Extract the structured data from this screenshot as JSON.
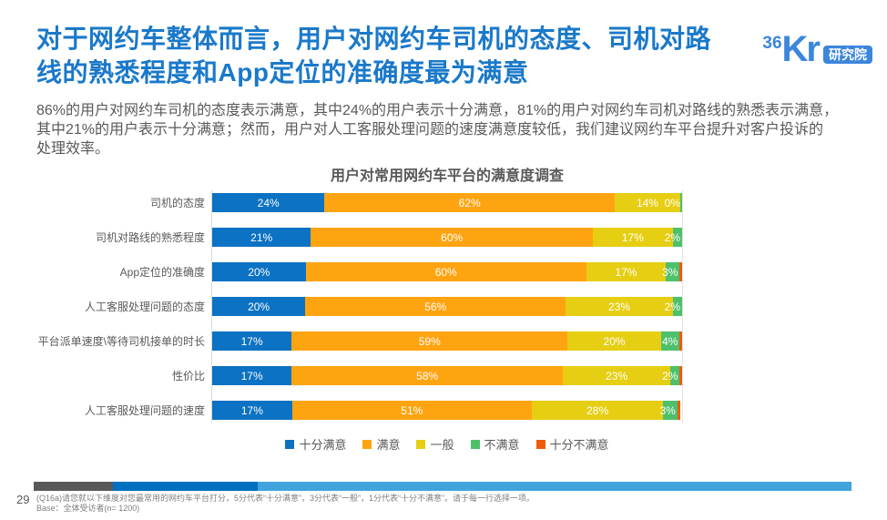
{
  "header": {
    "title_line1": "对于网约车整体而言，用户对网约车司机的态度、司机对路",
    "title_line2": "线的熟悉程度和App定位的准确度最为满意",
    "logo": {
      "num": "36",
      "kr": "Kr",
      "suffix": "研究院"
    }
  },
  "body_lines": {
    "l1": "86%的用户对网约车司机的态度表示满意，其中24%的用户表示十分满意，81%的用户对网约车司机对路线的熟悉表示满意，",
    "l2": "其中21%的用户表示十分满意；然而，用户对人工客服处理问题的速度满意度较低，我们建议网约车平台提升对客户投诉的",
    "l3": "处理效率。"
  },
  "chart_data": {
    "type": "bar",
    "variant": "horizontal-stacked",
    "title": "用户对常用网约车平台的满意度调查",
    "xlim": [
      0,
      100
    ],
    "legend": [
      {
        "name": "十分满意",
        "color": "#0C72C3"
      },
      {
        "name": "满意",
        "color": "#FFA411"
      },
      {
        "name": "一般",
        "color": "#E6CE13"
      },
      {
        "name": "不满意",
        "color": "#4EC06B"
      },
      {
        "name": "十分不满意",
        "color": "#ED5C0C"
      }
    ],
    "categories": [
      "司机的态度",
      "司机对路线的熟悉程度",
      "App定位的准确度",
      "人工客服处理问题的态度",
      "平台派单速度\\等待司机接单的时长",
      "性价比",
      "人工客服处理问题的速度"
    ],
    "rows": [
      {
        "category": "司机的态度",
        "values": [
          24,
          62,
          14,
          0,
          0
        ],
        "labels": [
          "24%",
          "62%",
          "14%",
          "0%",
          ""
        ],
        "display_widths": [
          24,
          62,
          14,
          0.4,
          0
        ]
      },
      {
        "category": "司机对路线的熟悉程度",
        "values": [
          21,
          60,
          17,
          2,
          0
        ],
        "labels": [
          "21%",
          "60%",
          "17%",
          "2%",
          ""
        ],
        "display_widths": [
          21,
          60,
          17,
          2,
          0
        ]
      },
      {
        "category": "App定位的准确度",
        "values": [
          20,
          60,
          17,
          3,
          0
        ],
        "labels": [
          "20%",
          "60%",
          "17%",
          "3%",
          ""
        ],
        "display_widths": [
          20,
          60,
          17,
          3,
          0.5
        ]
      },
      {
        "category": "人工客服处理问题的态度",
        "values": [
          20,
          56,
          23,
          2,
          0
        ],
        "labels": [
          "20%",
          "56%",
          "23%",
          "2%",
          ""
        ],
        "display_widths": [
          20,
          56,
          23,
          2,
          0
        ]
      },
      {
        "category": "平台派单速度\\等待司机接单的时长",
        "values": [
          17,
          59,
          20,
          4,
          0
        ],
        "labels": [
          "17%",
          "59%",
          "20%",
          "4%",
          ""
        ],
        "display_widths": [
          17,
          59,
          20,
          4,
          0.5
        ]
      },
      {
        "category": "性价比",
        "values": [
          17,
          58,
          23,
          2,
          0
        ],
        "labels": [
          "17%",
          "58%",
          "23%",
          "2%",
          ""
        ],
        "display_widths": [
          17,
          58,
          23,
          2,
          0.5
        ]
      },
      {
        "category": "人工客服处理问题的速度",
        "values": [
          17,
          51,
          28,
          3,
          1
        ],
        "labels": [
          "17%",
          "51%",
          "28%",
          "3%",
          ""
        ],
        "display_widths": [
          17,
          51,
          28,
          3,
          0.7
        ]
      }
    ]
  },
  "footer": {
    "page_number": "29",
    "footnote_line1": "(Q16a)请您就以下维度对您最常用的网约车平台打分，5分代表“十分满意”，3分代表“一般”，1分代表“十分不满意”。请于每一行选择一项。",
    "footnote_line2": "Base：全体受访者(n= 1200)"
  }
}
